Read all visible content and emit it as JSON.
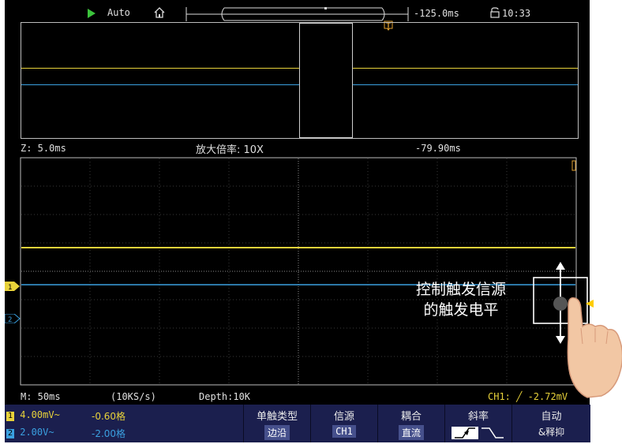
{
  "topbar": {
    "run_mode": "Auto",
    "time_offset": "-125.0ms",
    "clock": "10:33",
    "icons": [
      "play-icon",
      "home-icon",
      "lock-icon"
    ],
    "trigger_marker": "T"
  },
  "zoom_info": {
    "zoom_time": "Z: 5.0ms",
    "zoom_factor": "放大倍率: 10X",
    "zoom_offset": "-79.90ms"
  },
  "status": {
    "timebase": "M: 50ms",
    "sample_rate": "(10KS/s)",
    "depth": "Depth:10K",
    "trigger_status": "CH1: ╱ -2.72mV"
  },
  "channels": [
    {
      "num": "1",
      "scale": "4.00mV~",
      "offset": "-0.60格",
      "color": "#e8d23a"
    },
    {
      "num": "2",
      "scale": "2.00V~",
      "offset": "-2.00格",
      "color": "#3aa0e0"
    }
  ],
  "menu": [
    {
      "label": "单触类型",
      "value": "边沿"
    },
    {
      "label": "信源",
      "value": "CH1"
    },
    {
      "label": "耦合",
      "value": "直流"
    },
    {
      "label": "斜率",
      "value": ""
    },
    {
      "label": "自动",
      "value": "&释抑"
    }
  ],
  "callout": {
    "line1": "控制触发信源",
    "line2": "的触发电平"
  },
  "colors": {
    "ch1": "#e8d23a",
    "ch2": "#3aa0e0",
    "trigger": "#ffcc00",
    "panel": "#1b1f4e"
  }
}
